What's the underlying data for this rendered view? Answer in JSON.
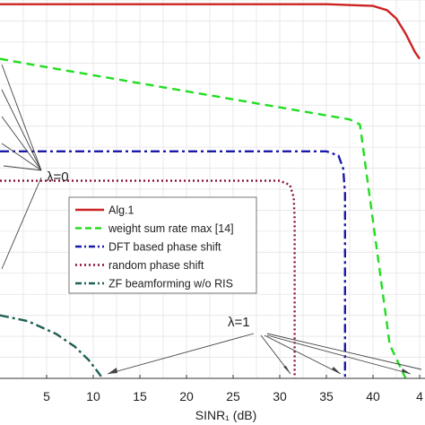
{
  "chart_data": {
    "type": "line",
    "xlabel": "SINR₁ (dB)",
    "ylabel": "",
    "xlim": [
      0,
      45
    ],
    "ylim": [
      0,
      45
    ],
    "xticks": [
      "5",
      "10",
      "15",
      "20",
      "25",
      "30",
      "35",
      "40",
      "4"
    ],
    "grid": true,
    "legend_position": "center",
    "colors": {
      "alg1": "#cc2222",
      "wsr": "#22dd22",
      "dft": "#1a1aaa",
      "random": "#881133",
      "zf": "#1f5f55"
    },
    "series": [
      {
        "name": "Alg.1",
        "style": "solid",
        "x": [
          0,
          20,
          35,
          40,
          41.5,
          42.5,
          43.5,
          44.5,
          45
        ],
        "y": [
          44.5,
          44.5,
          44.5,
          44.3,
          43.8,
          42.8,
          41.0,
          38.8,
          38.0
        ]
      },
      {
        "name": "weight sum rate max [14]",
        "style": "dash",
        "x": [
          0,
          4,
          37.5,
          38.6,
          41.8,
          43.5
        ],
        "y": [
          38.0,
          37.2,
          30.8,
          30.2,
          4.0,
          0
        ]
      },
      {
        "name": "DFT based phase shift",
        "style": "dashdot",
        "x": [
          0,
          35,
          36.3,
          36.8,
          37.0,
          37.0
        ],
        "y": [
          27.0,
          27.0,
          26.5,
          25.0,
          22.0,
          0
        ]
      },
      {
        "name": "random phase shift",
        "style": "dot",
        "x": [
          0,
          30,
          31.1,
          31.5,
          31.6,
          31.6
        ],
        "y": [
          23.5,
          23.5,
          23.0,
          21.5,
          19.0,
          0
        ]
      },
      {
        "name": "ZF beamforming w/o RIS",
        "style": "dashdot",
        "x": [
          0,
          3,
          6,
          8,
          9.5,
          10.4,
          11.0
        ],
        "y": [
          7.5,
          6.8,
          5.3,
          3.8,
          2.2,
          0.9,
          0
        ]
      }
    ],
    "annotations": [
      {
        "text": "λ=0"
      },
      {
        "text": "λ=1"
      }
    ]
  }
}
